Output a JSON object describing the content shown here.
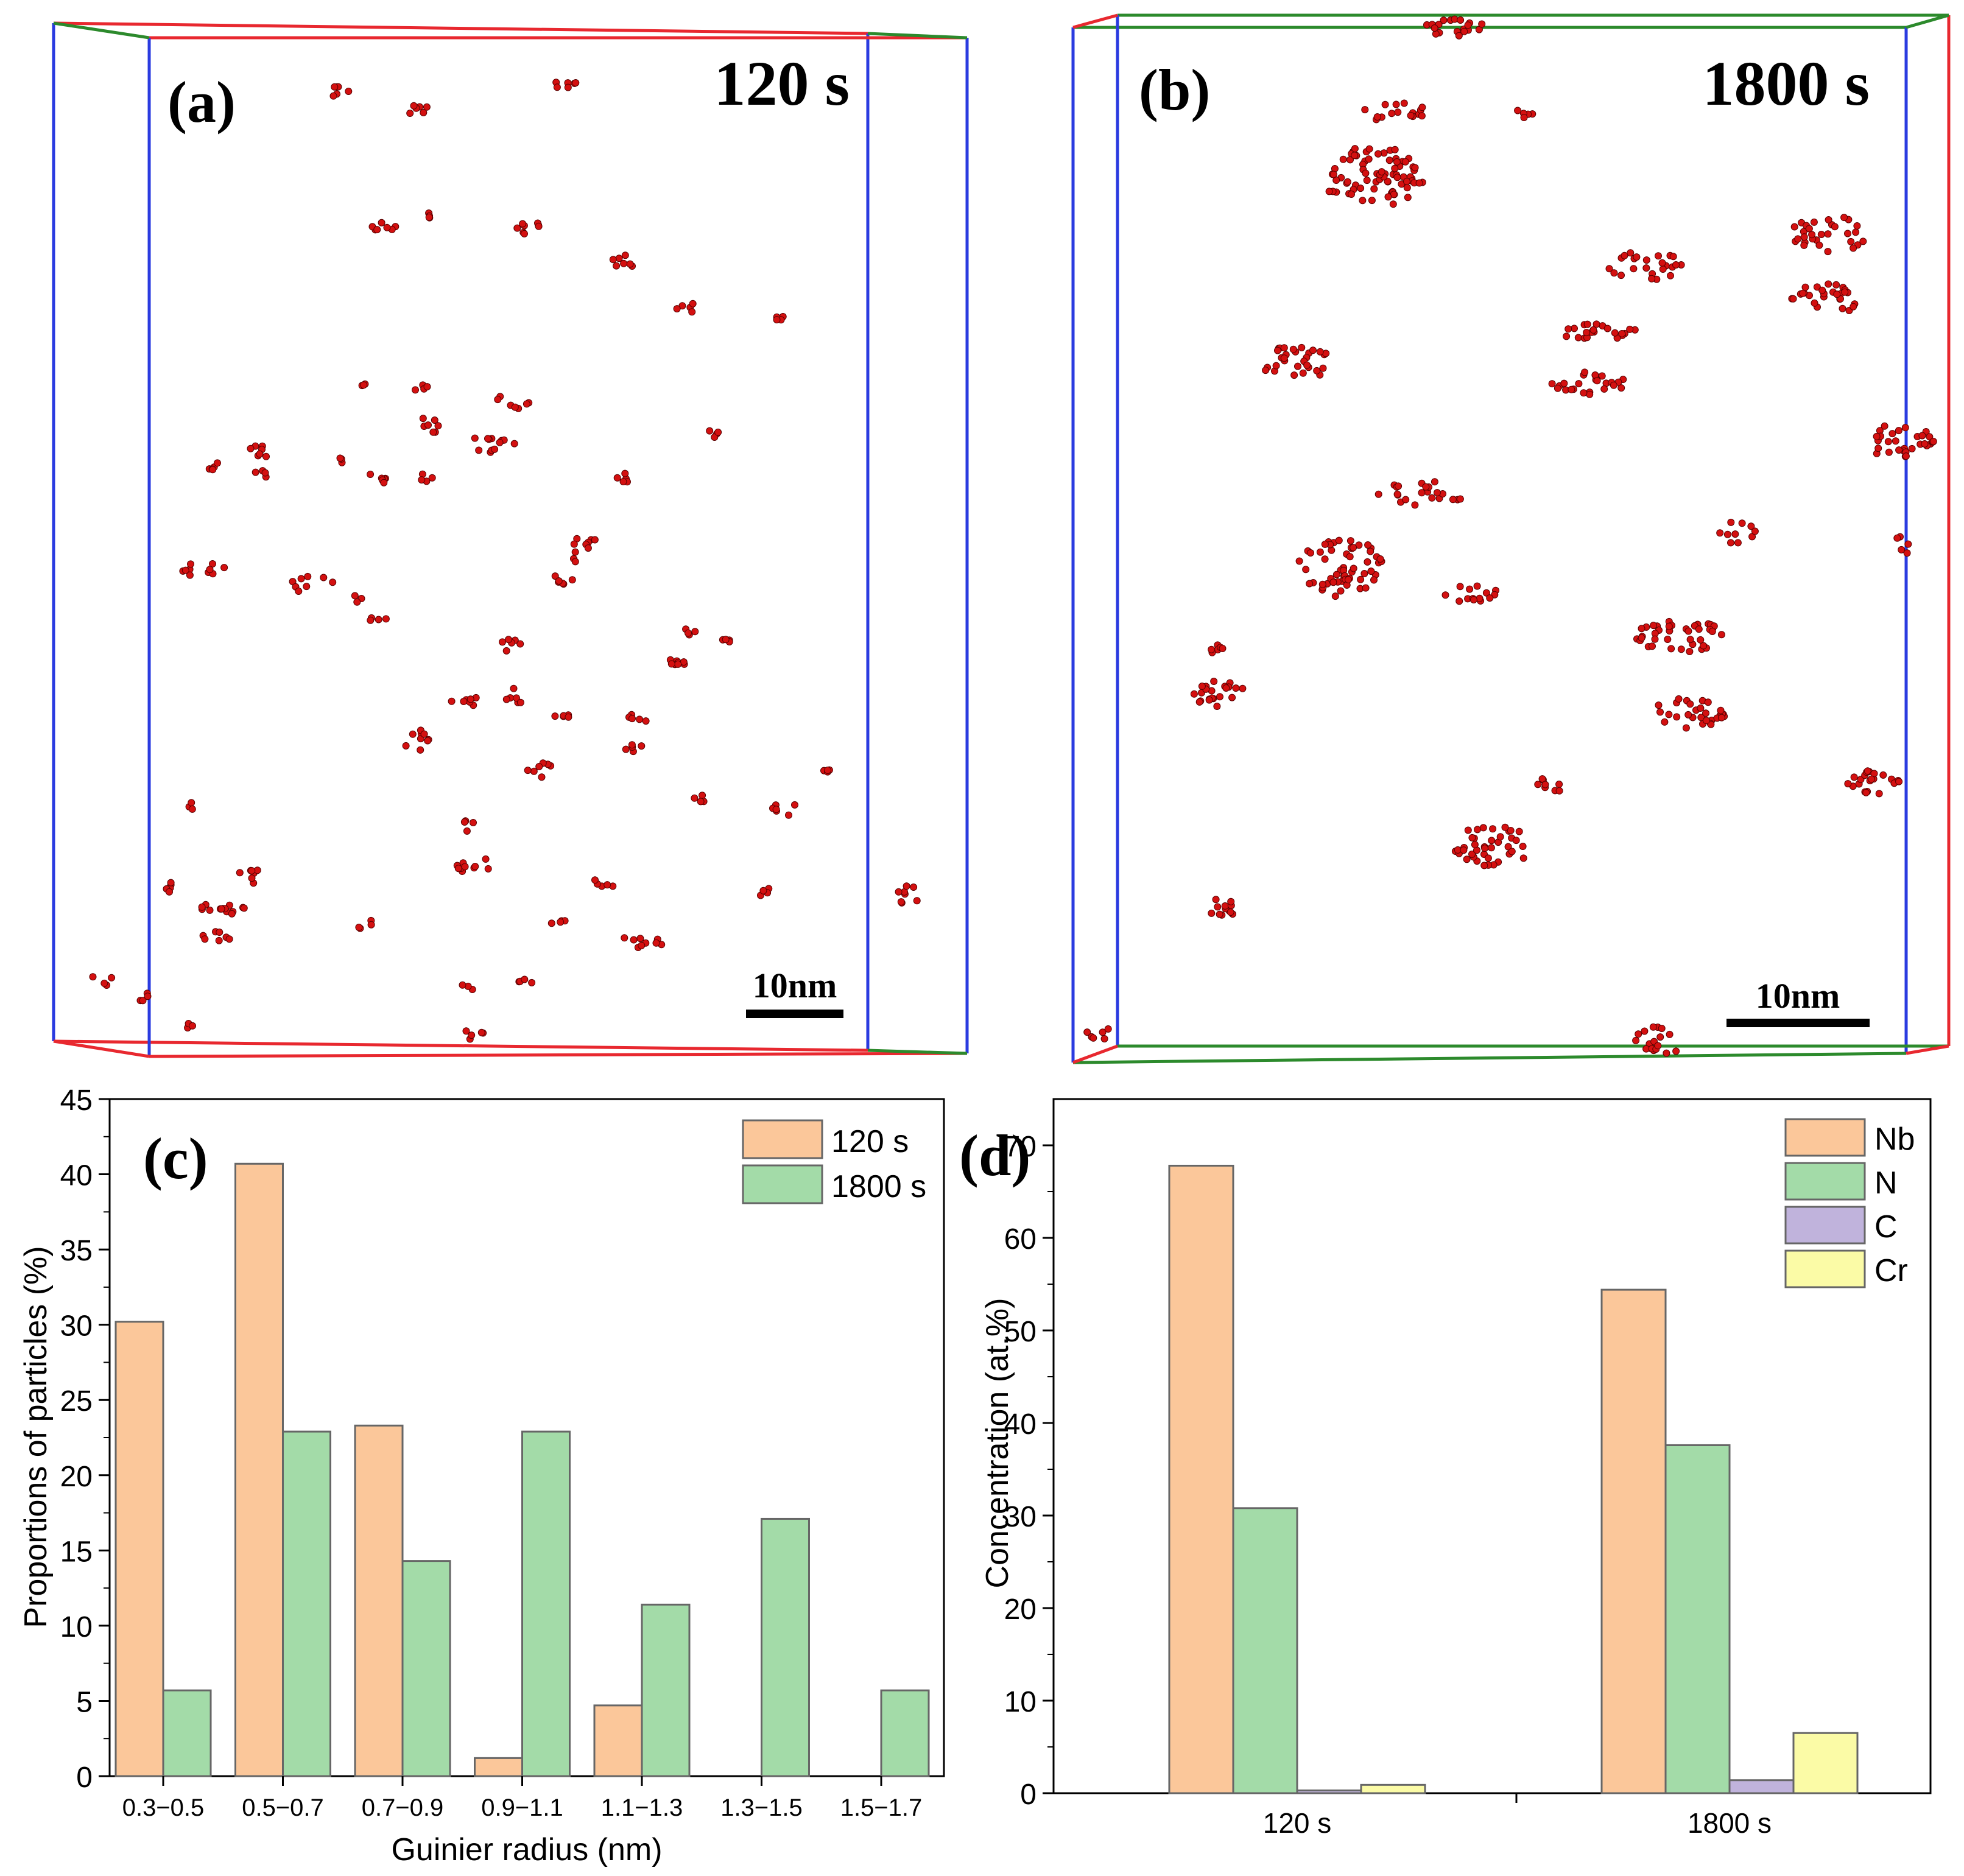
{
  "panels": {
    "a": {
      "label": "(a)",
      "time": "120 s",
      "scale_bar": "10nm"
    },
    "b": {
      "label": "(b)",
      "time": "1800 s",
      "scale_bar": "10nm"
    },
    "c": {
      "label": "(c)"
    },
    "d": {
      "label": "(d)"
    }
  },
  "colors": {
    "s120": "#fbc79a",
    "s1800": "#a3dba8",
    "Nb": "#fbc79a",
    "N": "#a3dba8",
    "C": "#c0b3dc",
    "Cr": "#fbfba6",
    "atom": "#d41010",
    "box_red": "#e8282f",
    "box_blue": "#2a3be0",
    "box_green": "#2c8a2c"
  },
  "chart_data": [
    {
      "id": "c",
      "type": "bar",
      "title": "",
      "xlabel": "Guinier radius (nm)",
      "ylabel": "Proportions of particles (%)",
      "categories": [
        "0.3−0.5",
        "0.5−0.7",
        "0.7−0.9",
        "0.9−1.1",
        "1.1−1.3",
        "1.3−1.5",
        "1.5−1.7"
      ],
      "series": [
        {
          "name": "120 s",
          "values": [
            30.2,
            40.7,
            23.3,
            1.2,
            4.7,
            0,
            0
          ]
        },
        {
          "name": "1800 s",
          "values": [
            5.7,
            22.9,
            14.3,
            22.9,
            11.4,
            17.1,
            5.7
          ]
        }
      ],
      "ylim": [
        0,
        45
      ],
      "yticks": [
        0,
        5,
        10,
        15,
        20,
        25,
        30,
        35,
        40,
        45
      ],
      "legend": "top-right"
    },
    {
      "id": "d",
      "type": "bar",
      "title": "",
      "xlabel": "",
      "ylabel": "Concentration (at.%)",
      "categories": [
        "120 s",
        "1800 s"
      ],
      "series": [
        {
          "name": "Nb",
          "values": [
            67.8,
            54.4
          ]
        },
        {
          "name": "N",
          "values": [
            30.8,
            37.6
          ]
        },
        {
          "name": "C",
          "values": [
            0.3,
            1.4
          ]
        },
        {
          "name": "Cr",
          "values": [
            0.9,
            6.5
          ]
        }
      ],
      "ylim": [
        0,
        75
      ],
      "yticks": [
        0,
        10,
        20,
        30,
        40,
        50,
        60,
        70
      ],
      "legend": "top-right"
    }
  ]
}
